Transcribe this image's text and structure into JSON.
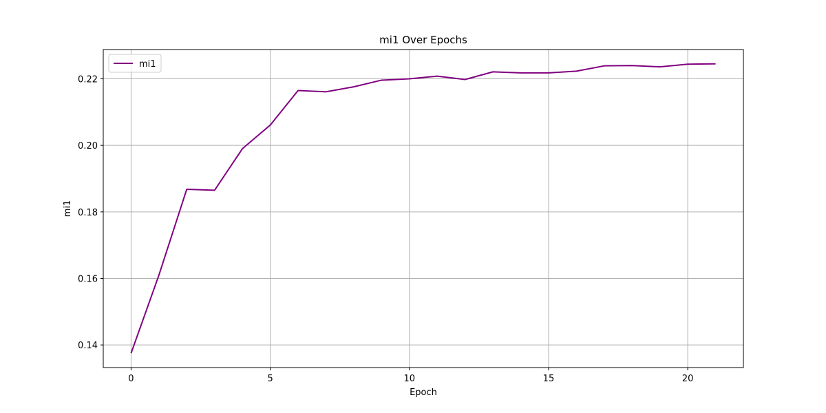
{
  "chart_data": {
    "type": "line",
    "title": "mi1 Over Epochs",
    "xlabel": "Epoch",
    "ylabel": "mi1",
    "x": [
      0,
      1,
      2,
      3,
      4,
      5,
      6,
      7,
      8,
      9,
      10,
      11,
      12,
      13,
      14,
      15,
      16,
      17,
      18,
      19,
      20,
      21
    ],
    "series": [
      {
        "name": "mi1",
        "color": "#800080",
        "values": [
          0.1375,
          0.161,
          0.1868,
          0.1865,
          0.199,
          0.2061,
          0.2165,
          0.2161,
          0.2176,
          0.2196,
          0.22,
          0.2208,
          0.2198,
          0.2221,
          0.2218,
          0.2218,
          0.2223,
          0.2239,
          0.224,
          0.2236,
          0.2244,
          0.2245
        ]
      }
    ],
    "xlim": [
      -1,
      22
    ],
    "ylim": [
      0.1332,
      0.2288
    ],
    "xticks": [
      0,
      5,
      10,
      15,
      20
    ],
    "xtick_labels": [
      "0",
      "5",
      "10",
      "15",
      "20"
    ],
    "yticks": [
      0.14,
      0.16,
      0.18,
      0.2,
      0.22
    ],
    "ytick_labels": [
      "0.14",
      "0.16",
      "0.18",
      "0.20",
      "0.22"
    ],
    "grid": true,
    "legend_position": "top-left"
  }
}
